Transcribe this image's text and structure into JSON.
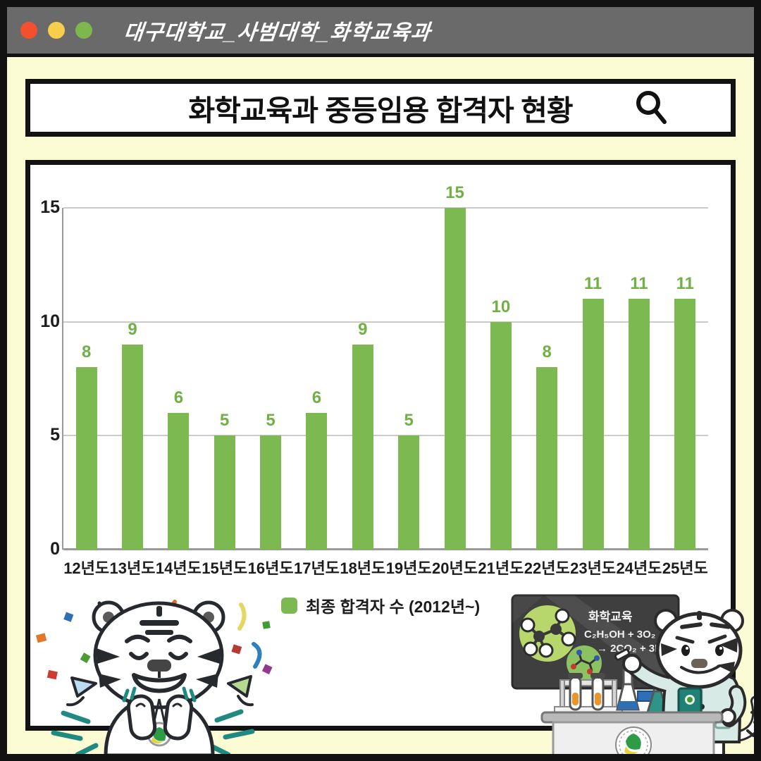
{
  "window": {
    "titlebar": {
      "title": "대구대학교_사범대학_화학교육과",
      "traffic_lights": [
        {
          "name": "red",
          "color": "#f4502e"
        },
        {
          "name": "yellow",
          "color": "#f7ce4b"
        },
        {
          "name": "green",
          "color": "#7cb84e"
        }
      ]
    }
  },
  "header": {
    "title": "화학교육과 중등임용 합격자 현황",
    "icon": "magnifier-icon"
  },
  "chart_data": {
    "type": "bar",
    "title": "화학교육과 중등임용 합격자 현황",
    "categories": [
      "12년도",
      "13년도",
      "14년도",
      "15년도",
      "16년도",
      "17년도",
      "18년도",
      "19년도",
      "20년도",
      "21년도",
      "22년도",
      "23년도",
      "24년도",
      "25년도"
    ],
    "values": [
      8,
      9,
      6,
      5,
      5,
      6,
      9,
      5,
      15,
      10,
      8,
      11,
      11,
      11
    ],
    "xlabel": "",
    "ylabel": "",
    "ylim": [
      0,
      15
    ],
    "yticks": [
      0,
      5,
      10,
      15
    ],
    "grid": true,
    "bar_color": "#7cb950",
    "value_label_color": "#71b045",
    "legend": {
      "label": "최종 합격자 수 (2012년~)",
      "swatch_color": "#7cb950",
      "position": "bottom-center"
    }
  },
  "blackboard": {
    "line1": "화학교육",
    "line2": "C₂H₅OH + 3O₂",
    "line3": "→ 2CO₂ + 3H₂O"
  },
  "illustrations": {
    "left_mascot": "celebrating-white-tiger-with-confetti",
    "right_mascot": "tiger-professor-lab-coat-pointing-at-chalkboard"
  },
  "colors": {
    "background": "#fbfbd4",
    "titlebar": "#6a6a6a",
    "frame": "#121212",
    "panel_border": "#121212",
    "bar_green": "#7cb950",
    "teal_accent": "#1f8a80",
    "blackboard": "#3f3f3f",
    "labcoat": "#d8eae5",
    "grid": "#cbcbcb",
    "axis": "#9a9a9a"
  }
}
